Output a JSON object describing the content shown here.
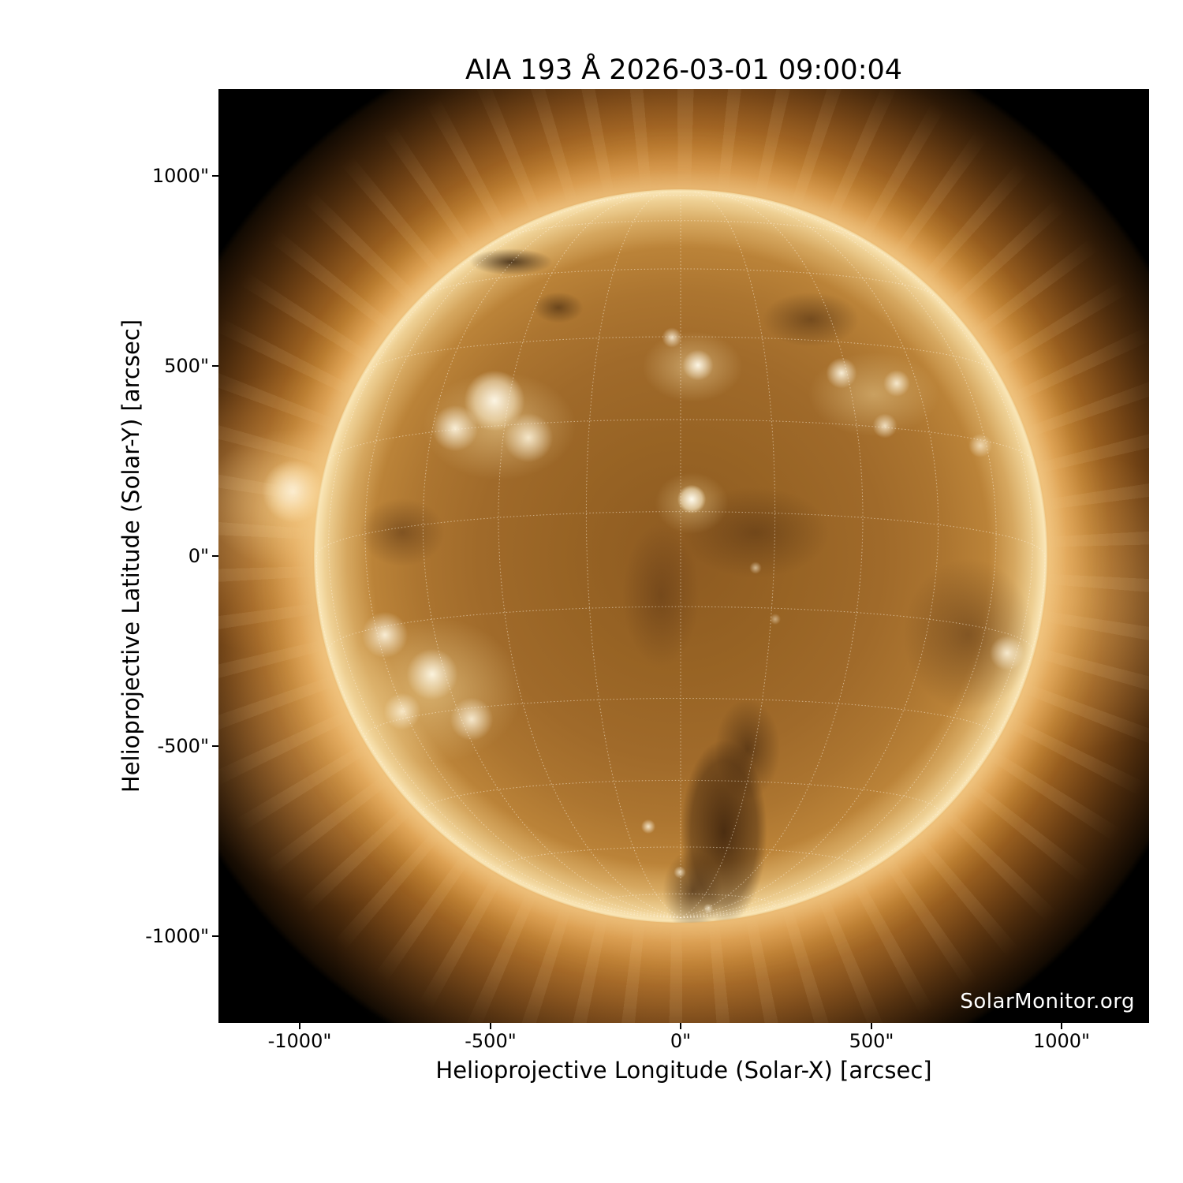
{
  "figure": {
    "title": "AIA 193 Å 2026-03-01 09:00:04",
    "watermark": "SolarMonitor.org"
  },
  "axes": {
    "x": {
      "label": "Helioprojective Longitude (Solar-X) [arcsec]",
      "ticks": [
        "-1000\"",
        "-500\"",
        "0\"",
        "500\"",
        "1000\""
      ]
    },
    "y": {
      "label": "Helioprojective Latitude (Solar-Y) [arcsec]",
      "ticks": [
        "1000\"",
        "500\"",
        "0\"",
        "-500\"",
        "-1000\""
      ]
    }
  },
  "chart_data": {
    "type": "heatmap",
    "subtype": "solar EUV full-disk image",
    "title": "AIA 193 Å 2026-03-01 09:00:04",
    "instrument": "AIA",
    "wavelength_angstrom": 193,
    "observation_datetime": "2026-03-01 09:00:04",
    "xlabel": "Helioprojective Longitude (Solar-X) [arcsec]",
    "ylabel": "Helioprojective Latitude (Solar-Y) [arcsec]",
    "xlim": [
      -1228,
      1228
    ],
    "ylim": [
      -1228,
      1228
    ],
    "x_ticks_arcsec": [
      -1000,
      -500,
      0,
      500,
      1000
    ],
    "y_ticks_arcsec": [
      1000,
      500,
      0,
      -500,
      -1000
    ],
    "solar_disk": {
      "center_arcsec": [
        0,
        0
      ],
      "radius_arcsec": 960
    },
    "overlay_grid": "heliographic lat/lon grid, dotted white, 15 degree spacing, south pole visible near bottom of disk",
    "colormap": "black -> dark brown -> gold -> white (SDO/AIA 193 gold palette)",
    "features": [
      {
        "kind": "active-region-cluster",
        "solar_xy_arcsec": [
          -510,
          410
        ],
        "appearance": "bright white looped plage, north-east quadrant"
      },
      {
        "kind": "active-region",
        "solar_xy_arcsec": [
          45,
          505
        ],
        "appearance": "bright compact region, north of disk center"
      },
      {
        "kind": "active-region",
        "solar_xy_arcsec": [
          30,
          150
        ],
        "appearance": "small bright loop system near disk center"
      },
      {
        "kind": "active-region-cluster",
        "solar_xy_arcsec": [
          485,
          420
        ],
        "appearance": "bright cluster, north-west quadrant"
      },
      {
        "kind": "active-region-cluster",
        "solar_xy_arcsec": [
          -675,
          -330
        ],
        "appearance": "large bright complex near south-east limb"
      },
      {
        "kind": "limb-active-region",
        "solar_xy_arcsec": [
          -1020,
          170
        ],
        "appearance": "bright point on east limb with radial coronal fan"
      },
      {
        "kind": "bright-region",
        "solar_xy_arcsec": [
          860,
          -255
        ],
        "appearance": "bright patch at west limb"
      },
      {
        "kind": "coronal-hole",
        "solar_xy_arcsec": [
          30,
          -720
        ],
        "appearance": "dark elongated channel extending to south pole"
      },
      {
        "kind": "filament-channel",
        "solar_xy_arcsec": [
          -450,
          785
        ],
        "appearance": "thin dark diagonal filament, north-east"
      }
    ],
    "legend": "none",
    "credit": "SolarMonitor.org"
  },
  "colors": {
    "page_background": "#ffffff",
    "plot_background": "#000000",
    "text": "#000000",
    "watermark_text": "#ffffff",
    "corona_glow": "#c98a3e",
    "limb": "#f0d9a8",
    "disk_mid": "#a06a2a",
    "disk_dark": "#5f3512",
    "active_region": "#fdf6e2",
    "grid_dots": "#fff4e0"
  }
}
